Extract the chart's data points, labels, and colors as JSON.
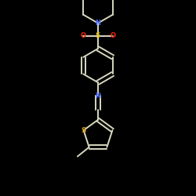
{
  "background_color": "#000000",
  "bond_color": "#d8d8c0",
  "N_color": "#4466ff",
  "O_color": "#ff2200",
  "S_thio_color": "#cc9900",
  "S_sulfonyl_color": "#ddbb00",
  "line_width": 1.4,
  "dbo": 0.012,
  "fig_size": [
    2.5,
    2.5
  ],
  "dpi": 100,
  "xlim": [
    -0.35,
    0.35
  ],
  "ylim": [
    -0.55,
    0.55
  ]
}
